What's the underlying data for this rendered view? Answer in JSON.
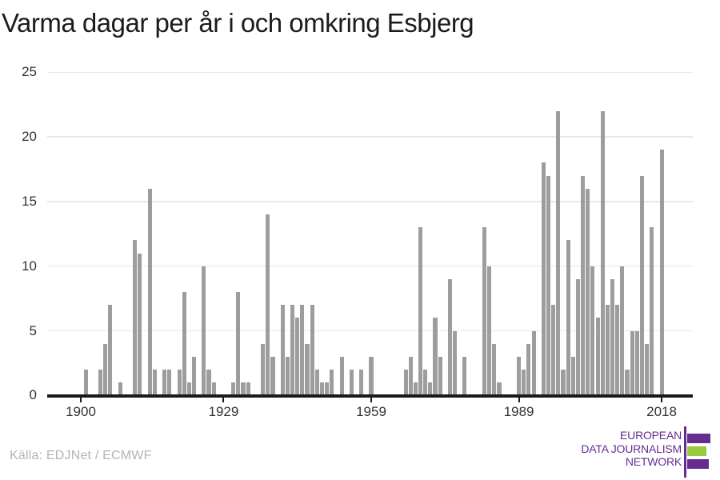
{
  "title": "Varma dagar per år i och omkring Esbjerg",
  "source": "Källa: EDJNet / ECMWF",
  "logo": {
    "lines": [
      "EUROPEAN",
      "DATA JOURNALISM",
      "NETWORK"
    ],
    "purple": "#662d91",
    "green": "#97ca3e"
  },
  "theme": {
    "bar_color": "#9d9d9d",
    "grid_color": "#e8e8e8",
    "axis_color": "#1a1a1a",
    "tick_label_color": "#333333"
  },
  "chart_data": {
    "type": "bar",
    "title": "Varma dagar per år i och omkring Esbjerg",
    "xlabel": "",
    "ylabel": "",
    "grid": true,
    "legend": "none",
    "xlim": [
      1893,
      2024
    ],
    "ylim": [
      0,
      25
    ],
    "x_ticks": [
      1900,
      1929,
      1959,
      1989,
      2018
    ],
    "y_ticks": [
      0,
      5,
      10,
      15,
      20,
      25
    ],
    "x": [
      1901,
      1904,
      1905,
      1906,
      1908,
      1911,
      1912,
      1914,
      1915,
      1917,
      1918,
      1920,
      1921,
      1922,
      1923,
      1925,
      1926,
      1927,
      1931,
      1932,
      1933,
      1934,
      1937,
      1938,
      1939,
      1941,
      1942,
      1943,
      1944,
      1945,
      1946,
      1947,
      1948,
      1949,
      1950,
      1951,
      1953,
      1955,
      1957,
      1959,
      1966,
      1967,
      1968,
      1969,
      1970,
      1971,
      1972,
      1973,
      1975,
      1976,
      1978,
      1982,
      1983,
      1984,
      1985,
      1989,
      1990,
      1991,
      1992,
      1994,
      1995,
      1996,
      1997,
      1998,
      1999,
      2000,
      2001,
      2002,
      2003,
      2004,
      2005,
      2006,
      2007,
      2008,
      2009,
      2010,
      2011,
      2012,
      2013,
      2014,
      2015,
      2016,
      2018
    ],
    "values": [
      2,
      2,
      4,
      7,
      1,
      12,
      11,
      16,
      2,
      2,
      2,
      2,
      8,
      1,
      3,
      10,
      2,
      1,
      1,
      8,
      1,
      1,
      4,
      14,
      3,
      7,
      3,
      7,
      6,
      7,
      4,
      7,
      2,
      1,
      1,
      2,
      3,
      2,
      2,
      3,
      2,
      3,
      1,
      13,
      2,
      1,
      6,
      3,
      9,
      5,
      3,
      13,
      10,
      4,
      1,
      3,
      2,
      4,
      5,
      18,
      17,
      7,
      22,
      2,
      12,
      3,
      9,
      17,
      16,
      10,
      6,
      22,
      7,
      9,
      7,
      10,
      2,
      5,
      5,
      17,
      4,
      13,
      19
    ]
  }
}
